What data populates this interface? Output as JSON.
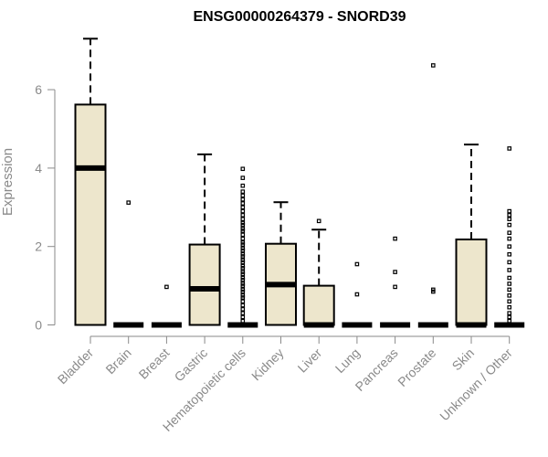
{
  "chart_data": {
    "type": "boxplot",
    "title": "ENSG00000264379 - SNORD39",
    "xlabel": "",
    "ylabel": "Expression",
    "ylim": [
      0,
      7.5
    ],
    "yticks": [
      0,
      2,
      4,
      6
    ],
    "grid": false,
    "colors": {
      "box_fill": "#ede6cc",
      "stroke": "#000000",
      "axis_text": "#8a8a8a"
    },
    "categories": [
      "Bladder",
      "Brain",
      "Breast",
      "Gastric",
      "Hematopoietic cells",
      "Kidney",
      "Liver",
      "Lung",
      "Pancreas",
      "Prostate",
      "Skin",
      "Unknown / Other"
    ],
    "boxes": [
      {
        "category": "Bladder",
        "whisker_low": 0,
        "q1": 0,
        "median": 4.0,
        "q3": 5.62,
        "whisker_high": 7.3,
        "outliers": []
      },
      {
        "category": "Brain",
        "whisker_low": 0,
        "q1": 0,
        "median": 0,
        "q3": 0,
        "whisker_high": 0,
        "outliers": [
          3.12
        ]
      },
      {
        "category": "Breast",
        "whisker_low": 0,
        "q1": 0,
        "median": 0,
        "q3": 0,
        "whisker_high": 0,
        "outliers": [
          0.97
        ]
      },
      {
        "category": "Gastric",
        "whisker_low": 0,
        "q1": 0,
        "median": 0.92,
        "q3": 2.05,
        "whisker_high": 4.35,
        "outliers": []
      },
      {
        "category": "Hematopoietic cells",
        "whisker_low": 0,
        "q1": 0,
        "median": 0,
        "q3": 0,
        "whisker_high": 0,
        "outliers": [
          0.1,
          0.2,
          0.3,
          0.4,
          0.5,
          0.6,
          0.7,
          0.75,
          0.85,
          0.9,
          1.0,
          1.05,
          1.15,
          1.2,
          1.3,
          1.35,
          1.45,
          1.5,
          1.6,
          1.65,
          1.75,
          1.8,
          1.9,
          1.95,
          2.05,
          2.1,
          2.2,
          2.3,
          2.4,
          2.45,
          2.55,
          2.6,
          2.7,
          2.8,
          2.9,
          3.0,
          3.1,
          3.2,
          3.3,
          3.4,
          3.55,
          3.75,
          3.98
        ]
      },
      {
        "category": "Kidney",
        "whisker_low": 0,
        "q1": 0,
        "median": 1.03,
        "q3": 2.07,
        "whisker_high": 3.13,
        "outliers": []
      },
      {
        "category": "Liver",
        "whisker_low": 0,
        "q1": 0,
        "median": 0,
        "q3": 1.0,
        "whisker_high": 2.43,
        "outliers": [
          2.65
        ]
      },
      {
        "category": "Lung",
        "whisker_low": 0,
        "q1": 0,
        "median": 0,
        "q3": 0,
        "whisker_high": 0,
        "outliers": [
          0.78,
          1.55
        ]
      },
      {
        "category": "Pancreas",
        "whisker_low": 0,
        "q1": 0,
        "median": 0,
        "q3": 0,
        "whisker_high": 0,
        "outliers": [
          0.97,
          1.35,
          2.2
        ]
      },
      {
        "category": "Prostate",
        "whisker_low": 0,
        "q1": 0,
        "median": 0,
        "q3": 0,
        "whisker_high": 0,
        "outliers": [
          0.85,
          0.9,
          6.62
        ]
      },
      {
        "category": "Skin",
        "whisker_low": 0,
        "q1": 0,
        "median": 0,
        "q3": 2.18,
        "whisker_high": 4.6,
        "outliers": []
      },
      {
        "category": "Unknown / Other",
        "whisker_low": 0,
        "q1": 0,
        "median": 0,
        "q3": 0,
        "whisker_high": 0,
        "outliers": [
          0.1,
          0.2,
          0.3,
          0.45,
          0.6,
          0.75,
          0.9,
          1.05,
          1.2,
          1.4,
          1.6,
          1.8,
          2.0,
          2.2,
          2.35,
          2.55,
          2.7,
          2.8,
          2.9,
          4.5
        ]
      }
    ]
  }
}
